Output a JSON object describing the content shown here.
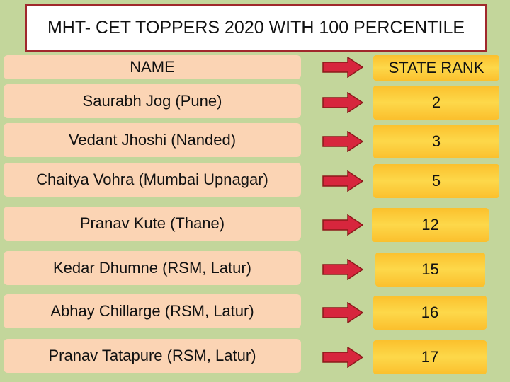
{
  "title": "MHT- CET TOPPERS 2020 WITH 100 PERCENTILE",
  "table": {
    "header": [
      "NAME",
      "STATE RANK"
    ],
    "rows": [
      [
        "Saurabh Jog (Pune)",
        2
      ],
      [
        "Vedant Jhoshi (Nanded)",
        3
      ],
      [
        "Chaitya Vohra (Mumbai Upnagar)",
        5
      ],
      [
        "Pranav Kute (Thane)",
        12
      ],
      [
        "Kedar Dhumne (RSM, Latur)",
        15
      ],
      [
        "Abhay Chillarge (RSM, Latur)",
        16
      ],
      [
        "Pranav Tatapure (RSM, Latur)",
        17
      ]
    ]
  }
}
